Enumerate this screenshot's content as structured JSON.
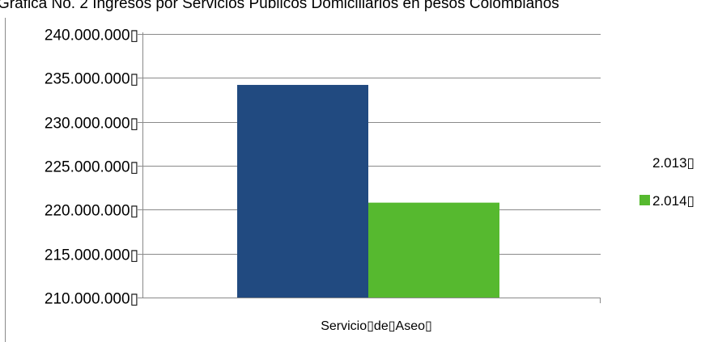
{
  "chart_data": {
    "type": "bar",
    "title": "Gráfica No. 2 Ingresos por Servicios Públicos Domiciliarios en pesos Colombianos",
    "categories": [
      "Servicio de Aseo"
    ],
    "category_labels": [
      "Servicio▯de▯Aseo▯"
    ],
    "series": [
      {
        "name": "2.013",
        "label": "2.013▯",
        "values": [
          234200000
        ],
        "color": "#214a80"
      },
      {
        "name": "2.014",
        "label": "2.014▯",
        "values": [
          220800000
        ],
        "color": "#56b92f"
      }
    ],
    "ylim": [
      210000000,
      240000000
    ],
    "y_ticks": [
      {
        "value": 210000000,
        "label": "210.000.000▯"
      },
      {
        "value": 215000000,
        "label": "215.000.000▯"
      },
      {
        "value": 220000000,
        "label": "220.000.000▯"
      },
      {
        "value": 225000000,
        "label": "225.000.000▯"
      },
      {
        "value": 230000000,
        "label": "230.000.000▯"
      },
      {
        "value": 235000000,
        "label": "235.000.000▯"
      },
      {
        "value": 240000000,
        "label": "240.000.000▯"
      }
    ],
    "xlabel": "",
    "ylabel": "",
    "grid": true,
    "legend": "right"
  }
}
